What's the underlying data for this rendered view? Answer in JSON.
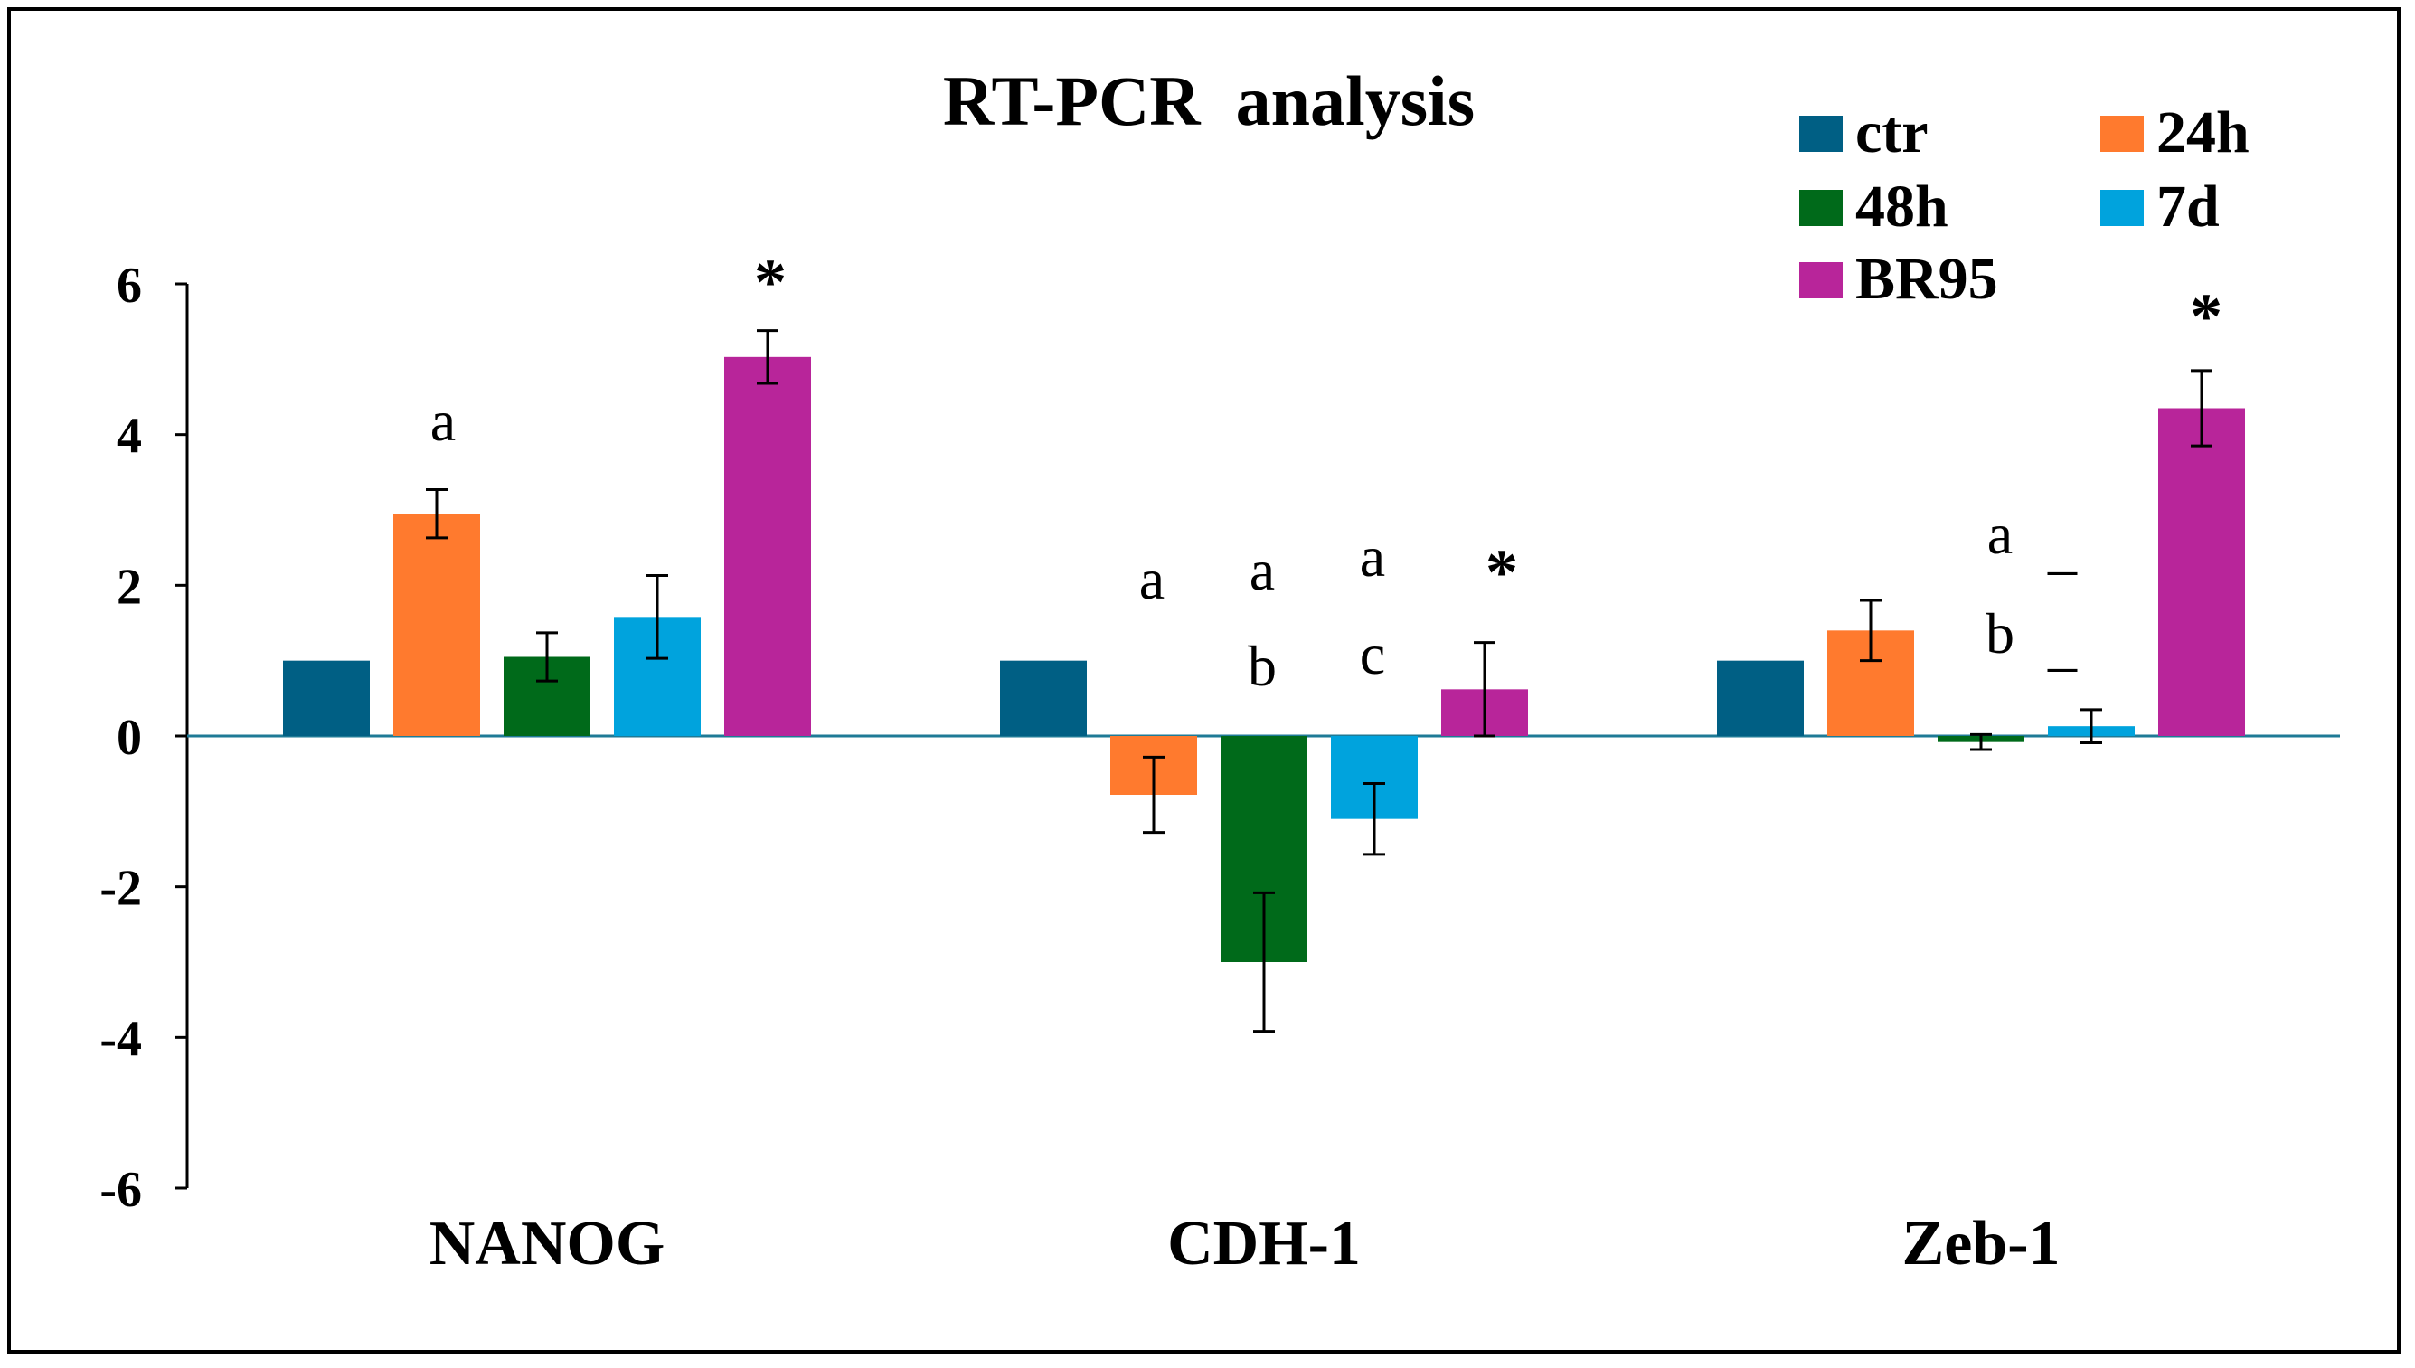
{
  "chart_data": {
    "type": "bar",
    "title": "RT-PCR  analysis",
    "xlabel": "",
    "ylabel": "",
    "ylim": [
      -6,
      6
    ],
    "yticks": [
      6,
      4,
      2,
      0,
      -2,
      -4,
      -6
    ],
    "categories": [
      "NANOG",
      "CDH-1",
      "Zeb-1"
    ],
    "series": [
      {
        "name": "ctr",
        "color": "#005F84",
        "values": [
          1.0,
          1.0,
          1.0
        ],
        "errors": [
          0,
          0,
          0
        ]
      },
      {
        "name": "24h",
        "color": "#FF7A2E",
        "values": [
          2.95,
          -0.78,
          1.4
        ],
        "errors": [
          0.32,
          0.5,
          0.4
        ]
      },
      {
        "name": "48h",
        "color": "#006A1A",
        "values": [
          1.05,
          -3.0,
          -0.08
        ],
        "errors": [
          0.32,
          0.92,
          0.1
        ]
      },
      {
        "name": "7d",
        "color": "#00A3DD",
        "values": [
          1.58,
          -1.1,
          0.13
        ],
        "errors": [
          0.55,
          0.47,
          0.22
        ]
      },
      {
        "name": "BR95",
        "color": "#B8259A",
        "values": [
          5.03,
          0.62,
          4.35
        ],
        "errors": [
          0.35,
          0.62,
          0.5
        ]
      }
    ],
    "annotations": [
      {
        "category": 0,
        "series": 1,
        "text": "a"
      },
      {
        "category": 0,
        "series": 4,
        "text": "*"
      },
      {
        "category": 1,
        "series": 1,
        "text": "a"
      },
      {
        "category": 1,
        "series": 2,
        "text": "a"
      },
      {
        "category": 1,
        "series": 2,
        "text": "b"
      },
      {
        "category": 1,
        "series": 3,
        "text": "a"
      },
      {
        "category": 1,
        "series": 3,
        "text": "c"
      },
      {
        "category": 1,
        "series": 4,
        "text": "*"
      },
      {
        "category": 2,
        "series": 2,
        "text": "a"
      },
      {
        "category": 2,
        "series": 2,
        "text": "b"
      },
      {
        "category": 2,
        "series": 3,
        "text": "_"
      },
      {
        "category": 2,
        "series": 3,
        "text": "_"
      },
      {
        "category": 2,
        "series": 4,
        "text": "*"
      }
    ],
    "legend_position": "top-right",
    "grid": false
  }
}
